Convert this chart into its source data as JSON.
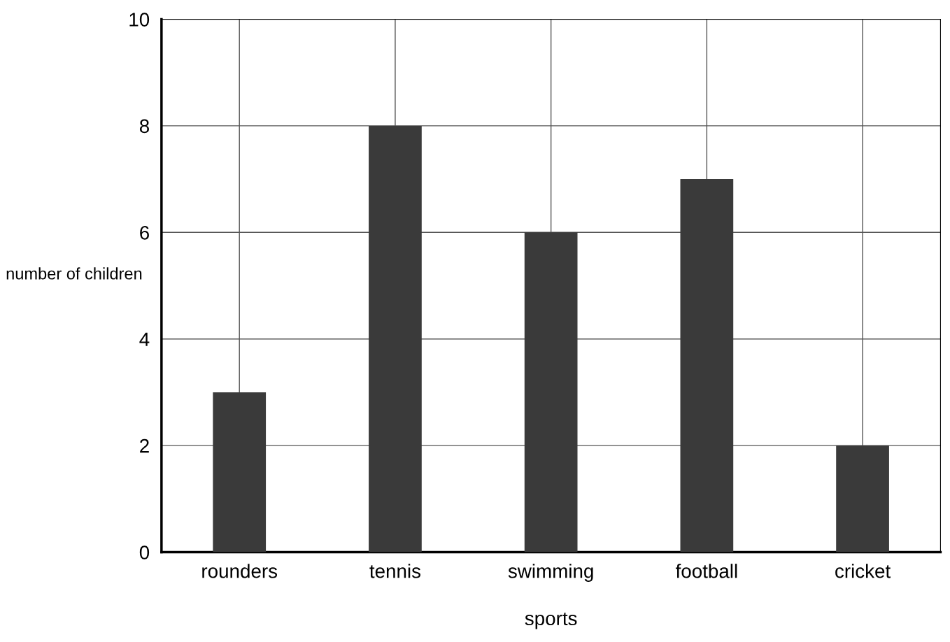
{
  "chart_data": {
    "type": "bar",
    "xlabel": "sports",
    "ylabel": "number of children",
    "categories": [
      "rounders",
      "tennis",
      "swimming",
      "football",
      "cricket"
    ],
    "values": [
      3,
      8,
      6,
      7,
      2
    ],
    "color": "#3a3a3a",
    "ylim": [
      0,
      10
    ],
    "yticks": [
      0,
      2,
      4,
      6,
      8,
      10
    ],
    "grid": true
  }
}
